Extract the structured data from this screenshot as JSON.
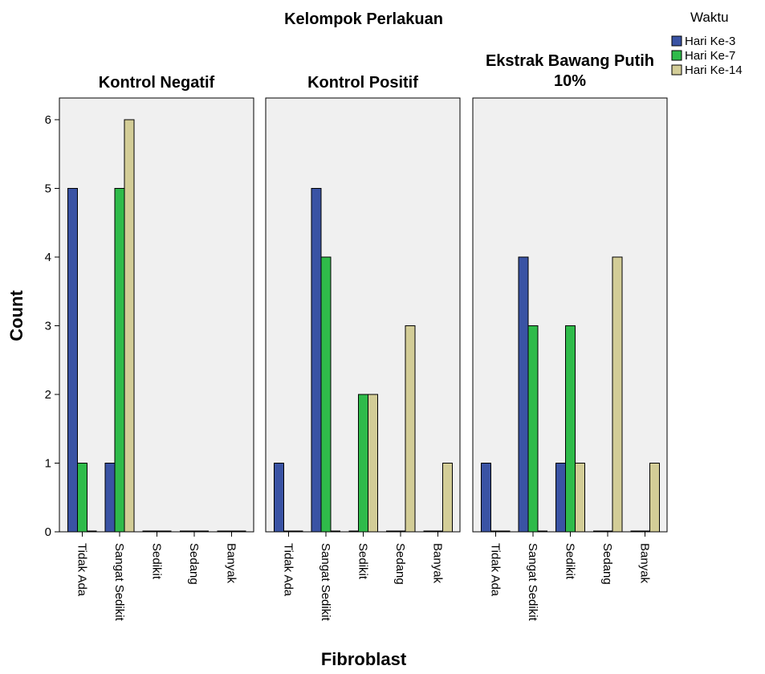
{
  "chart_data": {
    "type": "bar",
    "title": "Kelompok Perlakuan",
    "xlabel": "Fibroblast",
    "ylabel": "Count",
    "ylim": [
      0,
      6
    ],
    "yticks": [
      "0",
      "1",
      "2",
      "3",
      "4",
      "5",
      "6"
    ],
    "categories": [
      "Tidak Ada",
      "Sangat Sedikit",
      "Sedikit",
      "Sedang",
      "Banyak"
    ],
    "legend": {
      "title": "Waktu",
      "placement": "top-right",
      "items": [
        {
          "label": "Hari Ke-3",
          "color": "#3a53a4"
        },
        {
          "label": "Hari Ke-7",
          "color": "#2fbb4a"
        },
        {
          "label": "Hari Ke-14",
          "color": "#d3cd97"
        }
      ]
    },
    "panels": [
      {
        "title": "Kontrol Negatif",
        "series": [
          {
            "name": "Hari Ke-3",
            "values": [
              5,
              1,
              0,
              0,
              0
            ]
          },
          {
            "name": "Hari Ke-7",
            "values": [
              1,
              5,
              0,
              0,
              0
            ]
          },
          {
            "name": "Hari Ke-14",
            "values": [
              0,
              6,
              0,
              0,
              0
            ]
          }
        ]
      },
      {
        "title": "Kontrol Positif",
        "series": [
          {
            "name": "Hari Ke-3",
            "values": [
              1,
              5,
              0,
              0,
              0
            ]
          },
          {
            "name": "Hari Ke-7",
            "values": [
              0,
              4,
              2,
              0,
              0
            ]
          },
          {
            "name": "Hari Ke-14",
            "values": [
              0,
              0,
              2,
              3,
              1
            ]
          }
        ]
      },
      {
        "title": "Ekstrak Bawang Putih 10%",
        "series": [
          {
            "name": "Hari Ke-3",
            "values": [
              1,
              4,
              1,
              0,
              0
            ]
          },
          {
            "name": "Hari Ke-7",
            "values": [
              0,
              3,
              3,
              0,
              0
            ]
          },
          {
            "name": "Hari Ke-14",
            "values": [
              0,
              0,
              1,
              4,
              1
            ]
          }
        ]
      }
    ],
    "panel_background": "#f0f0f0",
    "grid": false
  }
}
